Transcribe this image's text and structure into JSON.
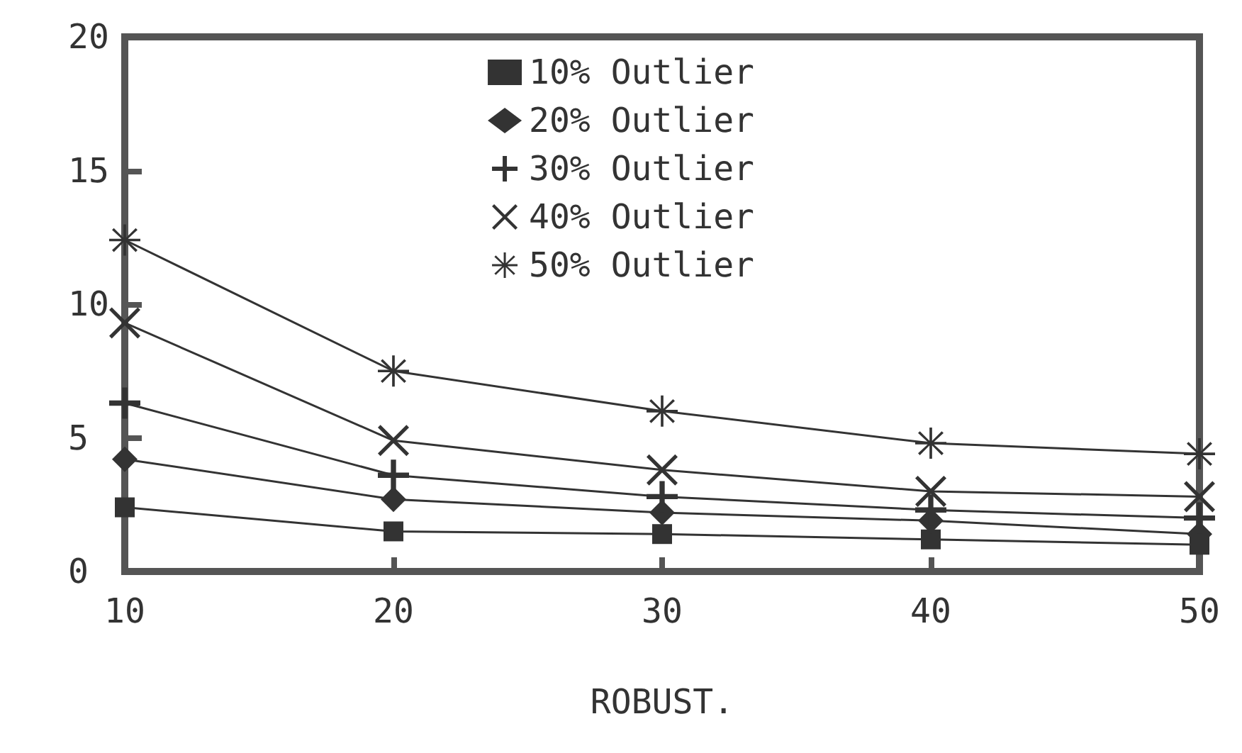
{
  "chart_data": {
    "type": "line",
    "xlabel": "ROBUST.",
    "x": [
      10,
      20,
      30,
      40,
      50
    ],
    "series": [
      {
        "name": "10% Outlier",
        "color": "#333333",
        "marker": "square",
        "values": [
          2.4,
          1.5,
          1.4,
          1.2,
          1.0
        ]
      },
      {
        "name": "20% Outlier",
        "color": "#333333",
        "marker": "diamond",
        "values": [
          4.2,
          2.7,
          2.2,
          1.9,
          1.4
        ]
      },
      {
        "name": "30% Outlier",
        "color": "#333333",
        "marker": "plus",
        "values": [
          6.3,
          3.6,
          2.8,
          2.3,
          2.0
        ]
      },
      {
        "name": "40% Outlier",
        "color": "#333333",
        "marker": "cross",
        "values": [
          9.3,
          4.9,
          3.8,
          3.0,
          2.8
        ]
      },
      {
        "name": "50% Outlier",
        "color": "#333333",
        "marker": "star",
        "values": [
          12.4,
          7.5,
          6.0,
          4.8,
          4.4
        ]
      }
    ],
    "xlim": [
      10,
      50
    ],
    "xticks": [
      10,
      20,
      30,
      40,
      50
    ],
    "ylim": [
      0,
      20
    ],
    "yticks": [
      0,
      5,
      10,
      15,
      20
    ],
    "grid": false,
    "legend": "top",
    "line_style": "solid"
  }
}
